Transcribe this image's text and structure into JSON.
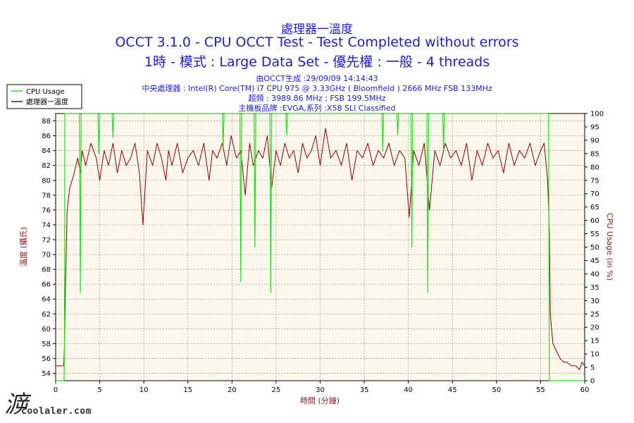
{
  "header": {
    "line1": "處理器一溫度",
    "line2": "OCCT 3.1.0 - CPU OCCT Test - Test Completed without errors",
    "line3": "1時 - 模式 : Large Data Set - 優先權 : 一般 - 4 threads"
  },
  "info": {
    "generated": "由OCCT生成 :29/09/09 14:14:43",
    "cpu": "中央處理器 : Intel(R) Core(TM) i7 CPU 975 @ 3.33GHz ( Bloomfield ) 2666 MHz FSB 133MHz",
    "oc": "超頻 : 3989.86 MHz ; FSB 199.5MHz",
    "mb": "主機板品牌 :EVGA,系列 :X58 SLI Classified"
  },
  "watermark": {
    "mark": "㴑",
    "text": "coolaler.com"
  },
  "colors": {
    "cpu_usage": "#22dd22",
    "temperature": "#8b0000",
    "plot_bg": "#fbf7ea",
    "title": "#1c1cc8",
    "axis_label": "#8b1a1a"
  },
  "chart_data": {
    "type": "line",
    "xlabel": "時間 (分鐘)",
    "ylabel_left": "溫度 (攝氏)",
    "ylabel_right": "CPU Usage (in %)",
    "xlim": [
      0,
      60
    ],
    "ylim_left": [
      53,
      89
    ],
    "ylim_right": [
      0,
      100
    ],
    "x_ticks": [
      0,
      5,
      10,
      15,
      20,
      25,
      30,
      35,
      40,
      45,
      50,
      55,
      60
    ],
    "y_left_ticks": [
      54,
      56,
      58,
      60,
      62,
      64,
      66,
      68,
      70,
      72,
      74,
      76,
      78,
      80,
      82,
      84,
      86,
      88
    ],
    "y_right_ticks": [
      0,
      5,
      10,
      15,
      20,
      25,
      30,
      35,
      40,
      45,
      50,
      55,
      60,
      65,
      70,
      75,
      80,
      85,
      90,
      95,
      100
    ],
    "grid": true,
    "legend": {
      "position": "top-left",
      "entries": [
        "CPU Usage",
        "處理器一溫度"
      ]
    },
    "series": [
      {
        "name": "處理器一溫度",
        "axis": "left",
        "x": [
          0,
          0.5,
          0.9,
          1.0,
          1.1,
          1.3,
          1.6,
          2.0,
          2.5,
          2.8,
          3.0,
          3.4,
          4.0,
          4.6,
          5.0,
          5.5,
          6.0,
          6.5,
          7.0,
          7.5,
          8.0,
          8.5,
          9.0,
          9.5,
          9.9,
          10.4,
          11.0,
          11.5,
          12.0,
          12.5,
          12.8,
          13.2,
          13.8,
          14.4,
          15.0,
          15.6,
          16.2,
          16.8,
          17.4,
          17.8,
          18.3,
          18.9,
          19.4,
          19.9,
          20.5,
          21.0,
          21.5,
          22.0,
          22.4,
          23.0,
          23.5,
          24.0,
          24.5,
          25.0,
          25.5,
          26.0,
          26.5,
          27.0,
          27.5,
          28.0,
          28.5,
          29.0,
          29.5,
          30.0,
          30.6,
          31.2,
          31.8,
          32.4,
          33.0,
          33.6,
          34.2,
          34.8,
          35.4,
          36.0,
          36.6,
          37.2,
          37.8,
          38.4,
          39.0,
          39.6,
          40.1,
          40.6,
          41.2,
          41.8,
          42.4,
          43.0,
          43.6,
          44.2,
          44.8,
          45.4,
          46.0,
          46.6,
          47.2,
          47.8,
          48.4,
          49.0,
          49.6,
          50.2,
          50.8,
          51.4,
          52.0,
          52.6,
          53.2,
          53.8,
          54.4,
          55.0,
          55.4,
          55.8,
          56.0,
          56.1,
          56.4,
          56.8,
          57.2,
          57.6,
          58.0,
          58.5,
          59.0,
          59.4,
          59.7,
          60.0
        ],
        "values": [
          55.0,
          55.0,
          55.0,
          57.5,
          65.0,
          76.0,
          79.0,
          80.5,
          83.0,
          81.0,
          84.0,
          82.0,
          85.0,
          83.0,
          80.0,
          84.0,
          82.0,
          85.0,
          81.0,
          84.0,
          82.0,
          83.0,
          85.0,
          81.0,
          74.0,
          84.0,
          82.0,
          85.0,
          83.0,
          80.0,
          84.0,
          82.0,
          85.0,
          81.0,
          83.0,
          84.0,
          82.0,
          85.0,
          80.0,
          84.0,
          83.0,
          85.0,
          82.0,
          86.0,
          83.0,
          84.0,
          78.0,
          85.0,
          82.0,
          84.0,
          83.0,
          86.0,
          79.0,
          84.0,
          82.0,
          85.0,
          83.0,
          84.0,
          81.0,
          85.0,
          83.0,
          84.0,
          86.0,
          82.0,
          87.0,
          83.0,
          84.0,
          82.0,
          85.0,
          80.0,
          84.0,
          83.0,
          85.0,
          82.0,
          84.0,
          83.0,
          85.0,
          82.0,
          84.0,
          83.0,
          75.0,
          84.0,
          82.0,
          85.0,
          76.0,
          84.0,
          82.0,
          85.0,
          83.0,
          84.0,
          82.0,
          85.0,
          80.0,
          84.0,
          82.0,
          85.0,
          83.0,
          84.0,
          81.0,
          85.0,
          82.0,
          84.0,
          83.0,
          85.0,
          82.0,
          84.0,
          85.0,
          80.0,
          73.0,
          62.0,
          58.0,
          57.0,
          56.0,
          55.5,
          55.5,
          55.0,
          55.0,
          54.5,
          55.5,
          55.0
        ]
      },
      {
        "name": "CPU Usage",
        "axis": "right",
        "x": [
          0,
          0.95,
          1.0,
          1.05,
          1.2,
          2.7,
          2.8,
          2.9,
          3.0,
          4.8,
          4.9,
          5.0,
          6.4,
          6.5,
          6.6,
          18.9,
          19.0,
          19.1,
          20.9,
          21.0,
          21.1,
          22.5,
          22.6,
          22.7,
          24.3,
          24.4,
          24.5,
          26.1,
          26.2,
          26.3,
          37.0,
          37.1,
          37.2,
          38.7,
          38.8,
          38.9,
          40.3,
          40.4,
          40.5,
          42.1,
          42.2,
          42.3,
          43.9,
          44.0,
          44.1,
          55.9,
          56.0,
          56.1,
          60.0
        ],
        "values": [
          0,
          0,
          12,
          100,
          100,
          100,
          33,
          100,
          100,
          100,
          85,
          100,
          100,
          91,
          100,
          100,
          88,
          100,
          100,
          37,
          100,
          100,
          50,
          100,
          100,
          33,
          100,
          100,
          92,
          100,
          100,
          86,
          100,
          100,
          92,
          100,
          100,
          50,
          100,
          100,
          33,
          100,
          100,
          86,
          100,
          100,
          0,
          0,
          0
        ]
      }
    ]
  }
}
